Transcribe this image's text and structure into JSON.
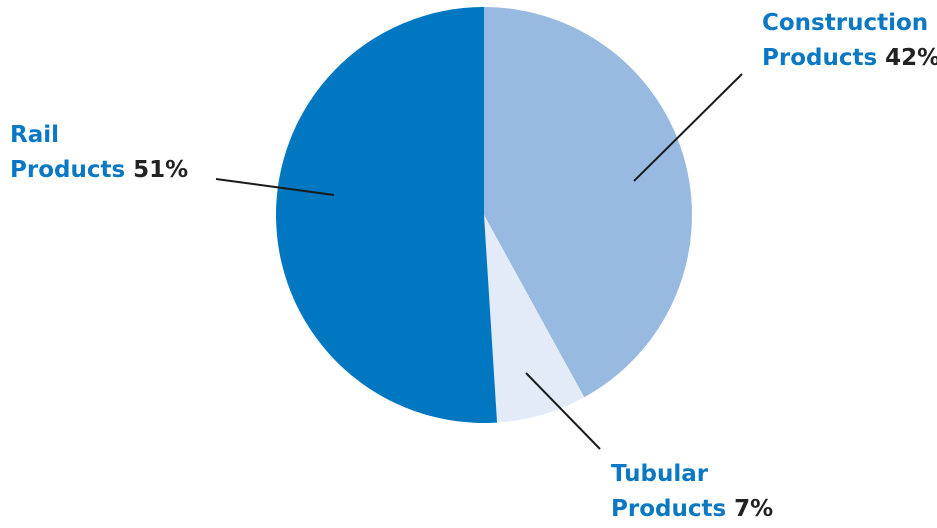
{
  "chart_data": {
    "type": "pie",
    "slices": [
      {
        "name_lines": [
          "Construction",
          "Products"
        ],
        "percent_label": "42%",
        "value": 42,
        "color": "#98bae0"
      },
      {
        "name_lines": [
          "Tubular",
          "Products"
        ],
        "percent_label": "7%",
        "value": 7,
        "color": "#e2ebf7"
      },
      {
        "name_lines": [
          "Rail",
          "Products"
        ],
        "percent_label": "51%",
        "value": 51,
        "color": "#0077c0"
      }
    ],
    "start_angle": "12 o'clock",
    "direction": "clockwise"
  }
}
